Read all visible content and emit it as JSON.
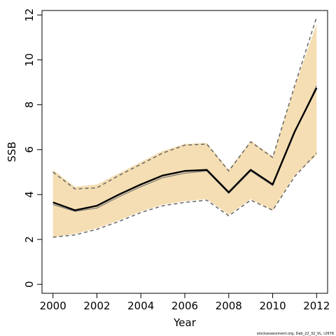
{
  "chart_data": {
    "type": "line",
    "title": "",
    "xlabel": "Year",
    "ylabel": "SSB",
    "xlim": [
      1999.5,
      2012.5
    ],
    "ylim": [
      -0.4,
      12.2
    ],
    "x_ticks": [
      2000,
      2002,
      2004,
      2006,
      2008,
      2010,
      2012
    ],
    "y_ticks": [
      0,
      2,
      4,
      6,
      8,
      10,
      12
    ],
    "x": [
      2000,
      2001,
      2002,
      2003,
      2004,
      2005,
      2006,
      2007,
      2008,
      2009,
      2010,
      2011,
      2012
    ],
    "band_upper": [
      5.1,
      4.35,
      4.45,
      4.95,
      5.45,
      5.95,
      6.25,
      6.3,
      5.1,
      6.4,
      5.7,
      8.8,
      11.6
    ],
    "band_lower": [
      2.1,
      2.25,
      2.5,
      2.85,
      3.25,
      3.55,
      3.7,
      3.8,
      3.1,
      3.8,
      3.3,
      4.85,
      5.75
    ],
    "series": [
      {
        "values": [
          3.65,
          3.3,
          3.5,
          4.0,
          4.45,
          4.85,
          5.05,
          5.1,
          4.1,
          5.1,
          4.45,
          6.8,
          8.75
        ]
      },
      {
        "values": [
          3.55,
          3.25,
          3.4,
          3.9,
          4.35,
          4.75,
          4.95,
          5.05,
          4.05,
          5.05,
          4.4,
          6.75,
          8.85
        ]
      },
      {
        "values": [
          5.0,
          4.25,
          4.3,
          4.85,
          5.35,
          5.85,
          6.2,
          6.25,
          5.05,
          6.35,
          5.65,
          8.85,
          11.9
        ]
      },
      {
        "values": [
          2.1,
          2.2,
          2.45,
          2.8,
          3.2,
          3.5,
          3.65,
          3.75,
          3.05,
          3.75,
          3.3,
          4.8,
          5.85
        ]
      }
    ],
    "colors": {
      "band": "#f5deb3",
      "main_line": "#000000",
      "alt_line": "#777777",
      "dashed_line": "#666666"
    },
    "grid": false,
    "footnote": "stockassessment.org, Dab_22_32_VL, r2676"
  }
}
